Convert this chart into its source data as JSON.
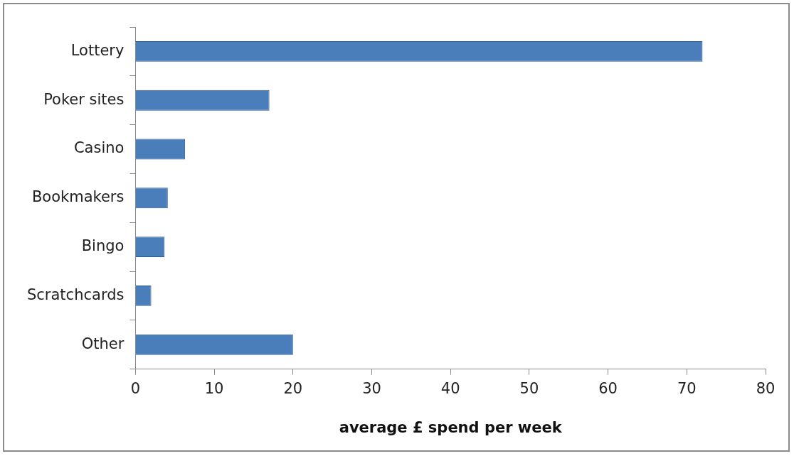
{
  "chart_data": {
    "type": "bar",
    "orientation": "horizontal",
    "categories": [
      "Lottery",
      "Poker sites",
      "Casino",
      "Bookmakers",
      "Bingo",
      "Scratchcards",
      "Other"
    ],
    "values": [
      72,
      17,
      6.3,
      4.1,
      3.7,
      2,
      20
    ],
    "color": "#4a7ebb",
    "xlabel": "average £ spend per week",
    "xlim": [
      0,
      80
    ],
    "xticks": [
      0,
      10,
      20,
      30,
      40,
      50,
      60,
      70,
      80
    ],
    "grid": false,
    "legend": false
  }
}
